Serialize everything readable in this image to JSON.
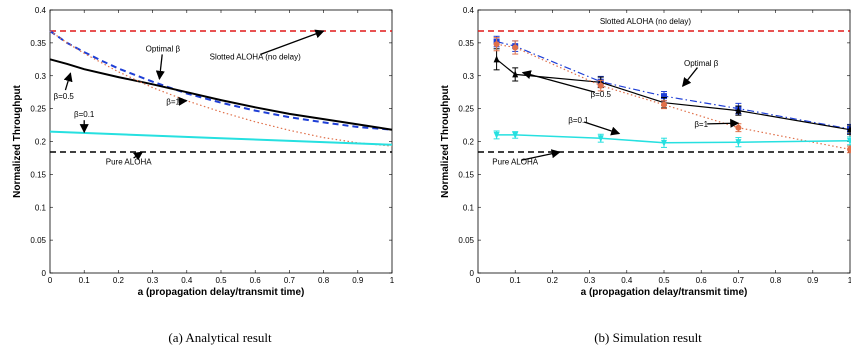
{
  "colors": {
    "blue": "#1f3fd6",
    "black": "#000000",
    "cyan": "#26e0e0",
    "red": "#e01818",
    "salmon": "#e0704a"
  },
  "chart_data": [
    {
      "type": "line",
      "caption": "(a)  Analytical result",
      "xlabel": "a (propagation delay/transmit time)",
      "ylabel": "Normalized Throughput",
      "xlim": [
        0,
        1
      ],
      "ylim": [
        0,
        0.4
      ],
      "xticks": [
        0,
        0.1,
        0.2,
        0.3,
        0.4,
        0.5,
        0.6,
        0.7,
        0.8,
        0.9,
        1
      ],
      "xtick_labels": [
        "0",
        "0.1",
        "0.2",
        "0.3",
        "0.4",
        "0.5",
        "0.6",
        "0.7",
        "0.8",
        "0.9",
        "1"
      ],
      "yticks": [
        0,
        0.05,
        0.1,
        0.15,
        0.2,
        0.25,
        0.3,
        0.35,
        0.4
      ],
      "ytick_labels": [
        "0",
        "0.05",
        "0.1",
        "0.15",
        "0.2",
        "0.25",
        "0.3",
        "0.35",
        "0.4"
      ],
      "grid": false,
      "series": [
        {
          "label": "Slotted ALOHA (no delay)",
          "color": "red",
          "style": "dashed",
          "width": 1.5,
          "x": [
            0,
            1
          ],
          "y": [
            0.368,
            0.368
          ]
        },
        {
          "label": "Pure ALOHA",
          "color": "black",
          "style": "dashed",
          "width": 1.5,
          "x": [
            0,
            1
          ],
          "y": [
            0.184,
            0.184
          ]
        },
        {
          "label": "Optimal β",
          "color": "blue",
          "style": "dashed",
          "width": 2,
          "x": [
            0,
            0.05,
            0.1,
            0.15,
            0.2,
            0.3,
            0.4,
            0.5,
            0.6,
            0.7,
            0.8,
            0.9,
            1
          ],
          "y": [
            0.368,
            0.35,
            0.336,
            0.323,
            0.311,
            0.291,
            0.273,
            0.259,
            0.247,
            0.237,
            0.229,
            0.222,
            0.218
          ]
        },
        {
          "label": "β=0.5",
          "color": "black",
          "style": "solid",
          "width": 2,
          "x": [
            0,
            0.05,
            0.1,
            0.2,
            0.3,
            0.4,
            0.5,
            0.6,
            0.7,
            0.8,
            0.9,
            1
          ],
          "y": [
            0.325,
            0.318,
            0.31,
            0.298,
            0.287,
            0.275,
            0.263,
            0.252,
            0.242,
            0.234,
            0.226,
            0.218
          ]
        },
        {
          "label": "β=1",
          "color": "salmon",
          "style": "dotted",
          "width": 1.2,
          "x": [
            0,
            0.05,
            0.1,
            0.2,
            0.3,
            0.4,
            0.5,
            0.6,
            0.7,
            0.8,
            0.9,
            1
          ],
          "y": [
            0.368,
            0.35,
            0.334,
            0.306,
            0.282,
            0.262,
            0.245,
            0.23,
            0.217,
            0.206,
            0.198,
            0.193
          ]
        },
        {
          "label": "β=0.1",
          "color": "cyan",
          "style": "solid",
          "width": 2,
          "x": [
            0,
            0.5,
            1
          ],
          "y": [
            0.215,
            0.205,
            0.195
          ]
        }
      ],
      "annotations": [
        {
          "text": "Slotted ALOHA (no delay)",
          "tx": 0.6,
          "ty": 0.325,
          "ax": 0.8,
          "ay": 0.368
        },
        {
          "text": "Optimal β",
          "tx": 0.33,
          "ty": 0.337,
          "ax": 0.32,
          "ay": 0.295
        },
        {
          "text": "β=0.5",
          "tx": 0.04,
          "ty": 0.265,
          "ax": 0.06,
          "ay": 0.304
        },
        {
          "text": "β=1",
          "tx": 0.36,
          "ty": 0.256,
          "ax": 0.4,
          "ay": 0.262
        },
        {
          "text": "β=0.1",
          "tx": 0.1,
          "ty": 0.237,
          "ax": 0.1,
          "ay": 0.214
        },
        {
          "text": "Pure ALOHA",
          "tx": 0.23,
          "ty": 0.165,
          "ax": 0.27,
          "ay": 0.184
        }
      ]
    },
    {
      "type": "line",
      "caption": "(b)  Simulation result",
      "xlabel": "a (propagation delay/transmit time)",
      "ylabel": "Normalized Throughput",
      "xlim": [
        0,
        1
      ],
      "ylim": [
        0,
        0.4
      ],
      "xticks": [
        0,
        0.1,
        0.2,
        0.3,
        0.4,
        0.5,
        0.6,
        0.7,
        0.8,
        0.9,
        1
      ],
      "xtick_labels": [
        "0",
        "0.1",
        "0.2",
        "0.3",
        "0.4",
        "0.5",
        "0.6",
        "0.7",
        "0.8",
        "0.9",
        "1"
      ],
      "yticks": [
        0,
        0.05,
        0.1,
        0.15,
        0.2,
        0.25,
        0.3,
        0.35,
        0.4
      ],
      "ytick_labels": [
        "0",
        "0.05",
        "0.1",
        "0.15",
        "0.2",
        "0.25",
        "0.3",
        "0.35",
        "0.4"
      ],
      "grid": false,
      "series": [
        {
          "label": "Slotted ALOHA (no delay)",
          "color": "red",
          "style": "dashed",
          "width": 1.5,
          "x": [
            0,
            1
          ],
          "y": [
            0.368,
            0.368
          ]
        },
        {
          "label": "Pure ALOHA",
          "color": "black",
          "style": "dashed",
          "width": 1.5,
          "x": [
            0,
            1
          ],
          "y": [
            0.184,
            0.184
          ]
        },
        {
          "label": "Optimal β",
          "color": "blue",
          "style": "dashdot",
          "width": 1.2,
          "marker": "square",
          "x": [
            0.05,
            0.1,
            0.33,
            0.5,
            0.7,
            1
          ],
          "y": [
            0.352,
            0.345,
            0.291,
            0.269,
            0.25,
            0.219
          ],
          "err": [
            0.008,
            0.008,
            0.008,
            0.007,
            0.008,
            0.007
          ]
        },
        {
          "label": "β=0.5",
          "color": "black",
          "style": "solid",
          "width": 1.2,
          "marker": "triangle",
          "x": [
            0.05,
            0.1,
            0.33,
            0.5,
            0.7,
            1
          ],
          "y": [
            0.325,
            0.302,
            0.29,
            0.259,
            0.247,
            0.218
          ],
          "err": [
            0.016,
            0.01,
            0.008,
            0.008,
            0.007,
            0.007
          ]
        },
        {
          "label": "β=1",
          "color": "salmon",
          "style": "dotted",
          "width": 1.2,
          "marker": "circle",
          "x": [
            0.05,
            0.1,
            0.33,
            0.5,
            0.7,
            1
          ],
          "y": [
            0.348,
            0.343,
            0.285,
            0.256,
            0.221,
            0.188
          ],
          "err": [
            0.01,
            0.01,
            0.008,
            0.006,
            0.006,
            0.005
          ]
        },
        {
          "label": "β=0.1",
          "color": "cyan",
          "style": "solid",
          "width": 1.5,
          "marker": "triangle-down",
          "x": [
            0.05,
            0.1,
            0.33,
            0.5,
            0.7,
            1
          ],
          "y": [
            0.21,
            0.21,
            0.205,
            0.198,
            0.199,
            0.201
          ],
          "err": [
            0.006,
            0.005,
            0.006,
            0.007,
            0.007,
            0.006
          ]
        }
      ],
      "annotations": [
        {
          "text": "Slotted ALOHA (no delay)",
          "tx": 0.45,
          "ty": 0.379,
          "ax": 0.0,
          "ay": 0.0
        },
        {
          "text": "Optimal β",
          "tx": 0.6,
          "ty": 0.315,
          "ax": 0.55,
          "ay": 0.284
        },
        {
          "text": "β=0.5",
          "tx": 0.33,
          "ty": 0.268,
          "ax": 0.12,
          "ay": 0.305
        },
        {
          "text": "β=1",
          "tx": 0.6,
          "ty": 0.222,
          "ax": 0.7,
          "ay": 0.228
        },
        {
          "text": "β=0.1",
          "tx": 0.27,
          "ty": 0.228,
          "ax": 0.38,
          "ay": 0.212
        },
        {
          "text": "Pure ALOHA",
          "tx": 0.1,
          "ty": 0.165,
          "ax": 0.22,
          "ay": 0.184
        }
      ]
    }
  ]
}
